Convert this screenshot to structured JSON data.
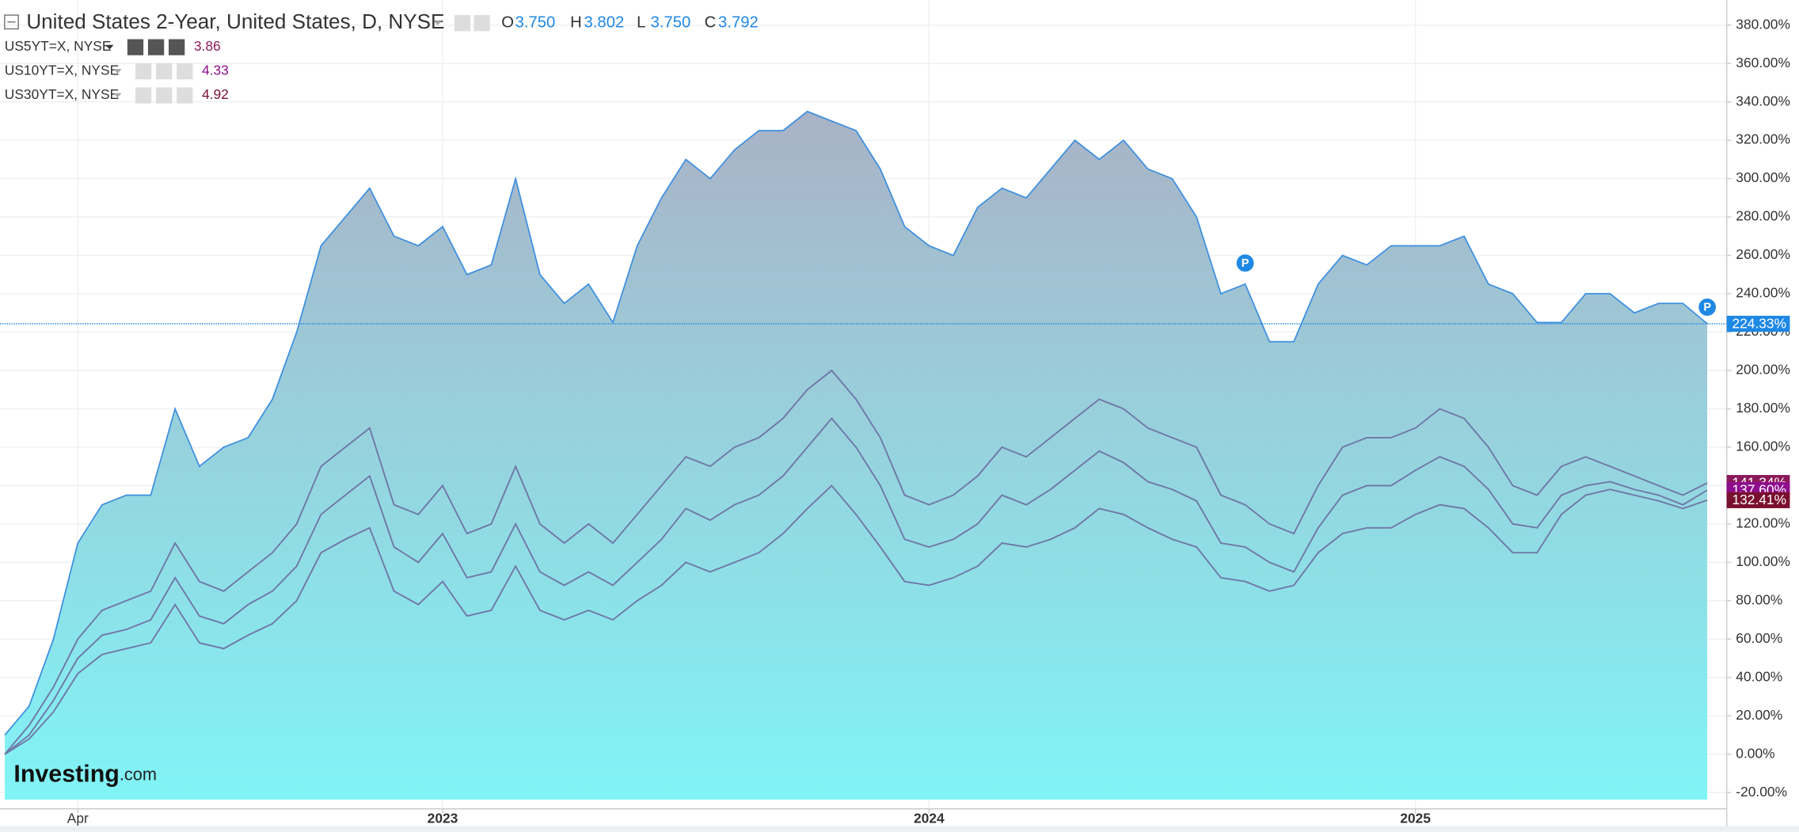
{
  "chart_data": {
    "type": "line",
    "quote": [
      {
        "key": "O",
        "value": "3.750"
      },
      {
        "key": "H",
        "value": "3.802"
      },
      {
        "key": "L",
        "value": "3.750"
      },
      {
        "key": "C",
        "value": "3.792"
      }
    ],
    "x": [
      2022.1,
      2022.15,
      2022.2,
      2022.25,
      2022.3,
      2022.35,
      2022.4,
      2022.45,
      2022.5,
      2022.55,
      2022.6,
      2022.65,
      2022.7,
      2022.75,
      2022.8,
      2022.85,
      2022.9,
      2022.95,
      2023,
      2023.05,
      2023.1,
      2023.15,
      2023.2,
      2023.25,
      2023.3,
      2023.35,
      2023.4,
      2023.45,
      2023.5,
      2023.55,
      2023.6,
      2023.65,
      2023.7,
      2023.75,
      2023.8,
      2023.85,
      2023.9,
      2023.95,
      2024,
      2024.05,
      2024.1,
      2024.15,
      2024.2,
      2024.25,
      2024.3,
      2024.35,
      2024.4,
      2024.45,
      2024.5,
      2024.55,
      2024.6,
      2024.65,
      2024.7,
      2024.75,
      2024.8,
      2024.85,
      2024.9,
      2024.95,
      2025,
      2025.05,
      2025.1,
      2025.15,
      2025.2,
      2025.25,
      2025.3,
      2025.35,
      2025.4,
      2025.45,
      2025.5,
      2025.55,
      2025.6
    ],
    "series": [
      {
        "name": "United States 2-Year, United States, D, NYSE",
        "area": true,
        "color": "#3d8fe0",
        "label_color": "#1e88e5",
        "last_label": "224.33%",
        "values": [
          10,
          25,
          60,
          110,
          130,
          135,
          135,
          180,
          150,
          160,
          165,
          185,
          220,
          265,
          280,
          295,
          270,
          265,
          275,
          250,
          255,
          300,
          250,
          235,
          245,
          225,
          265,
          290,
          310,
          300,
          315,
          325,
          325,
          335,
          330,
          325,
          305,
          275,
          265,
          260,
          285,
          295,
          290,
          305,
          320,
          310,
          320,
          305,
          300,
          280,
          240,
          245,
          215,
          215,
          245,
          260,
          255,
          265,
          265,
          265,
          270,
          245,
          240,
          225,
          225,
          240,
          240,
          230,
          235,
          235,
          224.33
        ]
      },
      {
        "name": "US5YT=X, NYSE",
        "last": 3.86,
        "color": "#6f77a6",
        "label_color": "#8b1a5a",
        "last_label": "141.34%",
        "values": [
          0,
          15,
          35,
          60,
          75,
          80,
          85,
          110,
          90,
          85,
          95,
          105,
          120,
          150,
          160,
          170,
          130,
          125,
          140,
          115,
          120,
          150,
          120,
          110,
          120,
          110,
          125,
          140,
          155,
          150,
          160,
          165,
          175,
          190,
          200,
          185,
          165,
          135,
          130,
          135,
          145,
          160,
          155,
          165,
          175,
          185,
          180,
          170,
          165,
          160,
          135,
          130,
          120,
          115,
          140,
          160,
          165,
          165,
          170,
          180,
          175,
          160,
          140,
          135,
          150,
          155,
          150,
          145,
          140,
          135,
          141.34
        ]
      },
      {
        "name": "US10YT=X, NYSE",
        "last": 4.33,
        "color": "#6f77a6",
        "label_color": "#8e0e8e",
        "last_label": "137.60%",
        "values": [
          0,
          10,
          28,
          50,
          62,
          65,
          70,
          92,
          72,
          68,
          78,
          85,
          98,
          125,
          135,
          145,
          108,
          100,
          115,
          92,
          95,
          120,
          95,
          88,
          95,
          88,
          100,
          112,
          128,
          122,
          130,
          135,
          145,
          160,
          175,
          160,
          140,
          112,
          108,
          112,
          120,
          135,
          130,
          138,
          148,
          158,
          152,
          142,
          138,
          132,
          110,
          108,
          100,
          95,
          118,
          135,
          140,
          140,
          148,
          155,
          150,
          138,
          120,
          118,
          135,
          140,
          142,
          138,
          135,
          130,
          137.6
        ]
      },
      {
        "name": "US30YT=X, NYSE",
        "last": 4.92,
        "color": "#6f77a6",
        "label_color": "#7a1030",
        "last_label": "132.41%",
        "values": [
          0,
          8,
          22,
          42,
          52,
          55,
          58,
          78,
          58,
          55,
          62,
          68,
          80,
          105,
          112,
          118,
          85,
          78,
          90,
          72,
          75,
          98,
          75,
          70,
          75,
          70,
          80,
          88,
          100,
          95,
          100,
          105,
          115,
          128,
          140,
          125,
          108,
          90,
          88,
          92,
          98,
          110,
          108,
          112,
          118,
          128,
          125,
          118,
          112,
          108,
          92,
          90,
          85,
          88,
          105,
          115,
          118,
          118,
          125,
          130,
          128,
          118,
          105,
          105,
          125,
          135,
          138,
          135,
          132,
          128,
          132.41
        ]
      }
    ],
    "event_markers": [
      {
        "x": 2024.65,
        "y": 256,
        "label": "P"
      },
      {
        "x": 2025.6,
        "y": 233,
        "label": "P"
      }
    ],
    "xlim": [
      2022.09,
      2025.64
    ],
    "xticks": [
      {
        "value": 2022.25,
        "label": "Apr"
      },
      2023,
      2024,
      2025
    ],
    "ylim": [
      -28.5,
      393
    ],
    "yticks": [
      {
        "value": -20,
        "label": "-20.00%"
      },
      {
        "value": 0,
        "label": "0.00%"
      },
      {
        "value": 20,
        "label": "20.00%"
      },
      {
        "value": 40,
        "label": "40.00%"
      },
      {
        "value": 60,
        "label": "60.00%"
      },
      {
        "value": 80,
        "label": "80.00%"
      },
      {
        "value": 100,
        "label": "100.00%"
      },
      {
        "value": 120,
        "label": "120.00%"
      },
      {
        "value": 140,
        "label": "140.00%"
      },
      {
        "value": 160,
        "label": "160.00%"
      },
      {
        "value": 180,
        "label": "180.00%"
      },
      {
        "value": 200,
        "label": "200.00%"
      },
      {
        "value": 220,
        "label": "220.00%"
      },
      {
        "value": 240,
        "label": "240.00%"
      },
      {
        "value": 260,
        "label": "260.00%"
      },
      {
        "value": 280,
        "label": "280.00%"
      },
      {
        "value": 300,
        "label": "300.00%"
      },
      {
        "value": 320,
        "label": "320.00%"
      },
      {
        "value": 340,
        "label": "340.00%"
      },
      {
        "value": 360,
        "label": "360.00%"
      },
      {
        "value": 380,
        "label": "380.00%"
      }
    ],
    "grid": true,
    "watermark": {
      "brand": "Investing",
      "domain": ".com"
    }
  }
}
